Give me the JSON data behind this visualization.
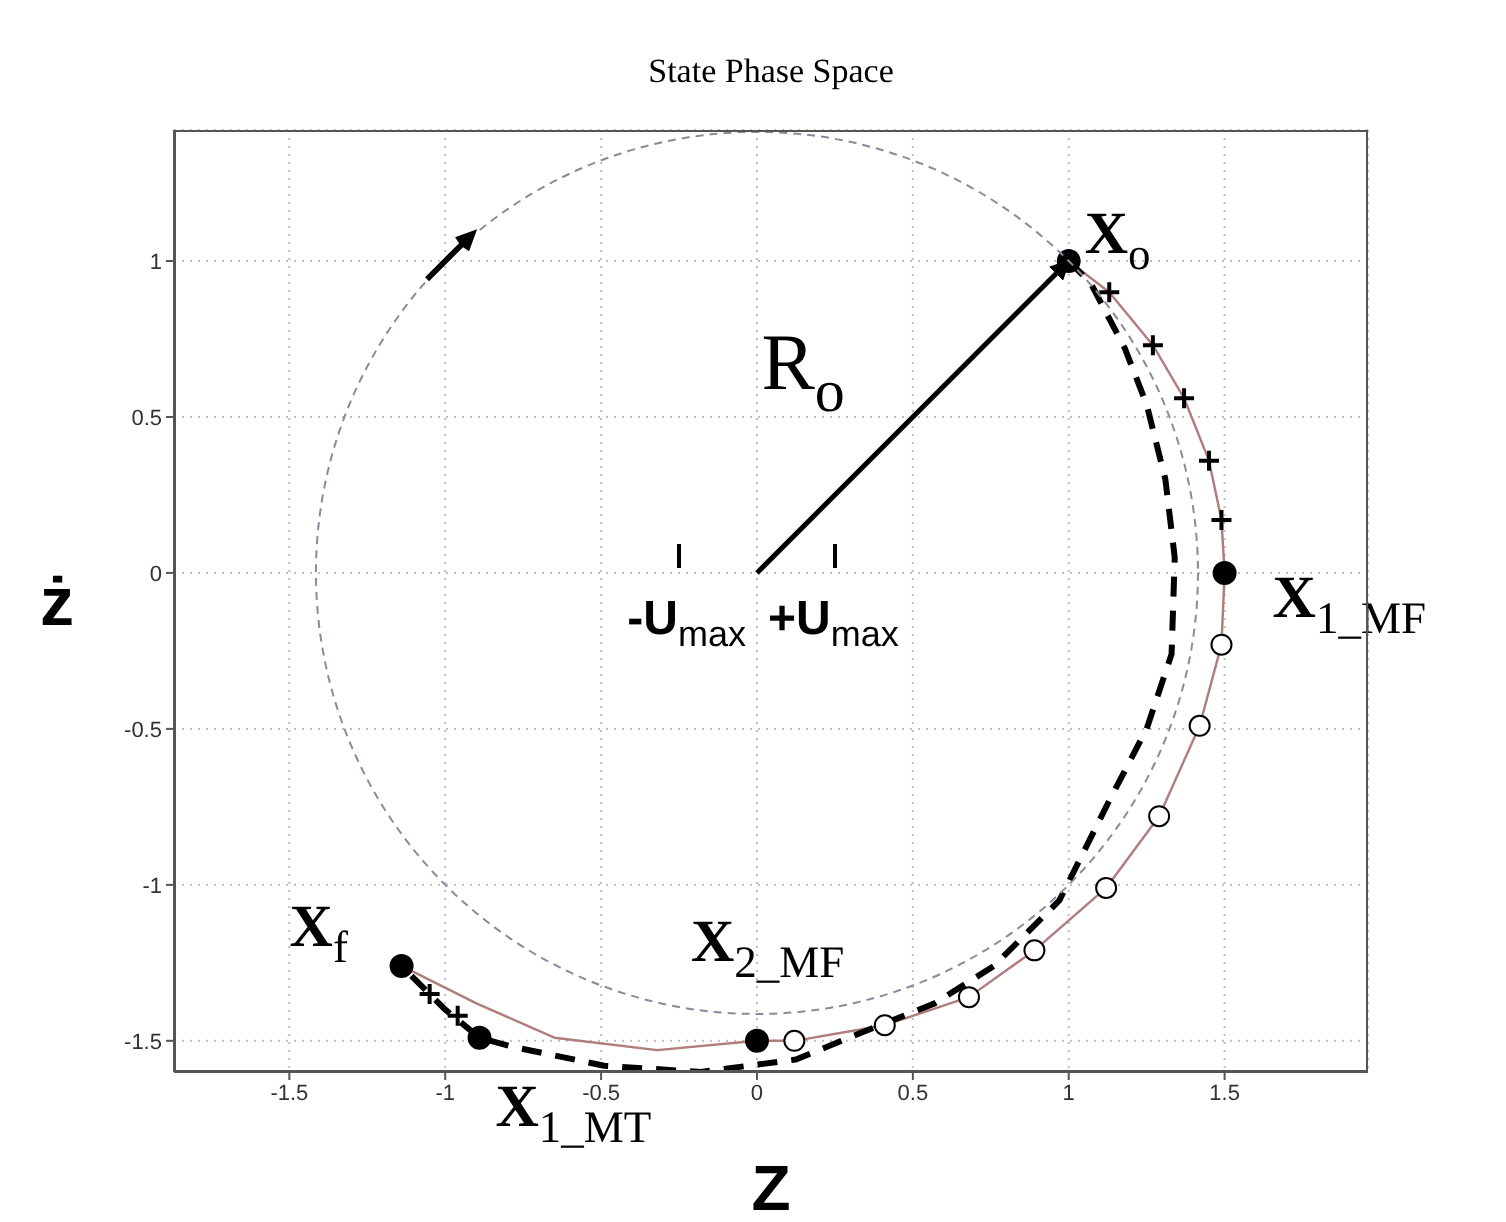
{
  "chart_data": {
    "type": "line",
    "title": "State Phase Space",
    "xlabel": "Z",
    "ylabel": "ż",
    "xlim": [
      -1.87,
      1.96
    ],
    "xticks": [
      -1.5,
      -1,
      -0.5,
      0,
      0.5,
      1,
      1.5
    ],
    "ylim": [
      -1.6,
      1.42
    ],
    "yticks": [
      -1.5,
      -1,
      -0.5,
      0,
      0.5,
      1
    ],
    "grid": true,
    "series": [
      {
        "color": "#b07c7c",
        "line_style": "solid",
        "marker": "none",
        "x": [
          1,
          1.13,
          1.27,
          1.37,
          1.45,
          1.49,
          1.5,
          1.49,
          1.42,
          1.29,
          1.12,
          0.89,
          0.68,
          0.41,
          0.12,
          0,
          -0.32,
          -0.65,
          -0.9,
          -1.14
        ],
        "values": [
          1,
          0.9,
          0.73,
          0.56,
          0.36,
          0.17,
          0,
          -0.23,
          -0.49,
          -0.78,
          -1.01,
          -1.21,
          -1.36,
          -1.45,
          -1.5,
          -1.5,
          -1.53,
          -1.49,
          -1.38,
          -1.26
        ]
      },
      {
        "color": "#000000",
        "line_style": "dashed",
        "marker": "none",
        "x": [
          1,
          1.07,
          1.18,
          1.25,
          1.31,
          1.34,
          1.33,
          1.25,
          1.13,
          0.97,
          0.76,
          0.57,
          0.32,
          0.125,
          -0.18,
          -0.49,
          -0.78,
          -0.89,
          -1,
          -1.14
        ],
        "values": [
          1,
          0.93,
          0.72,
          0.54,
          0.3,
          0.05,
          -0.26,
          -0.5,
          -0.73,
          -1.05,
          -1.26,
          -1.38,
          -1.48,
          -1.56,
          -1.6,
          -1.58,
          -1.52,
          -1.49,
          -1.4,
          -1.26
        ]
      },
      {
        "color": "#000000",
        "line_style": "solid",
        "x": [
          0,
          1
        ],
        "values": [
          0,
          1
        ]
      },
      {
        "type": "scatter",
        "color": "#ffffff",
        "marker": "circle",
        "x": [
          1.49,
          1.42,
          1.29,
          1.12,
          0.89,
          0.68,
          0.41,
          0.12
        ],
        "values": [
          -0.23,
          -0.49,
          -0.78,
          -1.01,
          -1.21,
          -1.36,
          -1.45,
          -1.5
        ]
      },
      {
        "type": "scatter",
        "color": "#000000",
        "marker": "cross",
        "x": [
          1.13,
          1.27,
          1.37,
          1.45,
          1.49,
          -1.05,
          -0.96
        ],
        "values": [
          0.9,
          0.73,
          0.56,
          0.36,
          0.17,
          -1.35,
          -1.42
        ]
      },
      {
        "type": "scatter",
        "color": "#000000",
        "marker": "circle",
        "x": [
          1,
          1.5,
          0,
          -0.89,
          -1.14
        ],
        "values": [
          1,
          0,
          -1.5,
          -1.49,
          -1.26
        ]
      }
    ],
    "annotations": [
      {
        "text": "X$_{o}$",
        "x": 1,
        "y": 1
      },
      {
        "text": "R$_{o}$",
        "x": 0.5,
        "y": 0.5
      },
      {
        "text": "X$_{1_MF}$",
        "x": 1.5,
        "y": 0
      },
      {
        "text": "X$_{2_MF}$",
        "x": 0,
        "y": -1.5
      },
      {
        "text": "X$_{f}$",
        "x": -1.14,
        "y": -1.26
      },
      {
        "text": "X$_{1_MT}$",
        "x": -0.89,
        "y": -1.49
      },
      "-U$_{max}$",
      "+U$_{max}$"
    ]
  }
}
